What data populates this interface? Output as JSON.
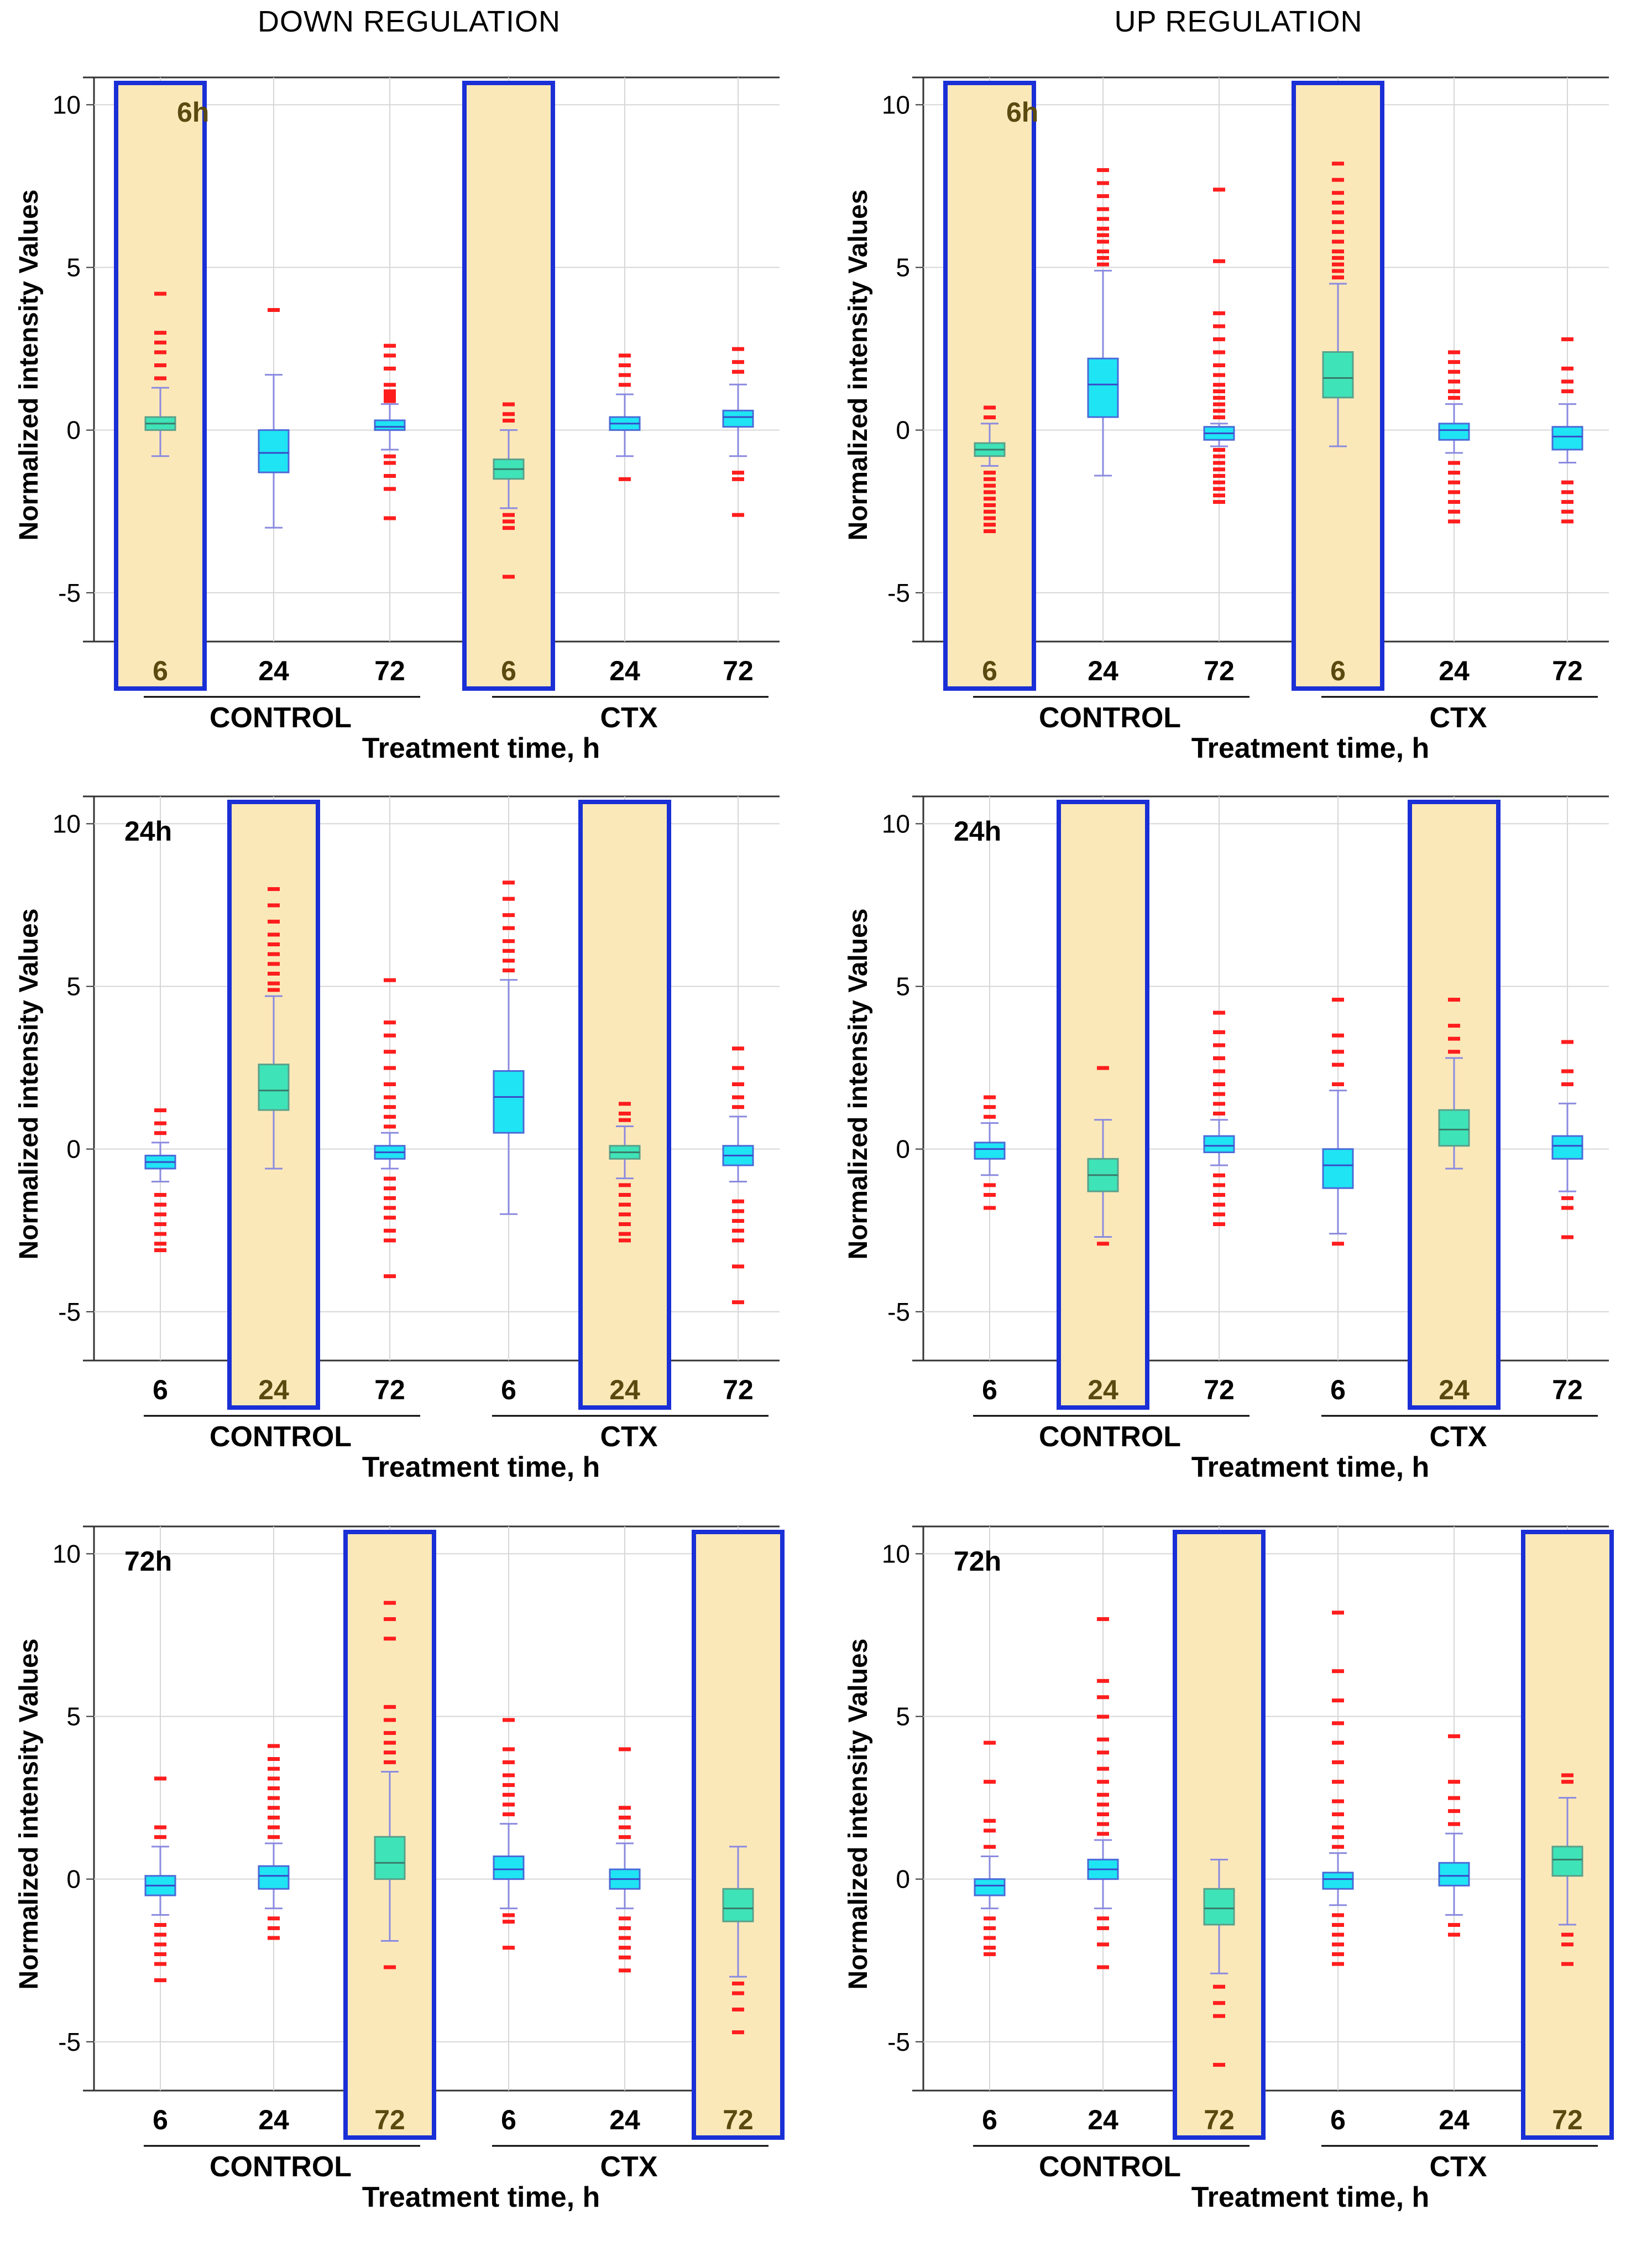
{
  "figure": {
    "column_titles": [
      "DOWN REGULATION",
      "UP REGULATION"
    ]
  },
  "chart_data": [
    {
      "type": "box",
      "column": "DOWN REGULATION",
      "panel_label": "6h",
      "ylabel": "Normalized intensity Values",
      "xlabel": "Treatment time, h",
      "ylim": [
        -6.5,
        10.5
      ],
      "yticks": [
        -5,
        0,
        5,
        10
      ],
      "groups": [
        "CONTROL",
        "CTX"
      ],
      "categories": [
        "6",
        "24",
        "72",
        "6",
        "24",
        "72"
      ],
      "highlighted": [
        0,
        3
      ],
      "boxes": [
        {
          "q1": 0.0,
          "median": 0.2,
          "q3": 0.4,
          "whisker_low": -0.8,
          "whisker_high": 1.3,
          "outliers_low": [],
          "outliers_high": [
            1.6,
            2.0,
            2.4,
            2.7,
            3.0,
            4.2
          ]
        },
        {
          "q1": -1.3,
          "median": -0.7,
          "q3": 0.0,
          "whisker_low": -3.0,
          "whisker_high": 1.7,
          "outliers_low": [],
          "outliers_high": [
            3.7
          ]
        },
        {
          "q1": 0.0,
          "median": 0.1,
          "q3": 0.3,
          "whisker_low": -0.6,
          "whisker_high": 0.8,
          "outliers_low": [
            -0.8,
            -1.0,
            -1.4,
            -1.8,
            -2.7
          ],
          "outliers_high": [
            0.9,
            1.0,
            1.1,
            1.2,
            1.4,
            1.9,
            2.3,
            2.6
          ]
        },
        {
          "q1": -1.5,
          "median": -1.2,
          "q3": -0.9,
          "whisker_low": -2.4,
          "whisker_high": 0.0,
          "outliers_low": [
            -2.6,
            -2.8,
            -3.0,
            -4.5
          ],
          "outliers_high": [
            0.3,
            0.5,
            0.8
          ]
        },
        {
          "q1": 0.0,
          "median": 0.2,
          "q3": 0.4,
          "whisker_low": -0.8,
          "whisker_high": 1.1,
          "outliers_low": [
            -1.5
          ],
          "outliers_high": [
            1.4,
            1.7,
            2.0,
            2.3
          ]
        },
        {
          "q1": 0.1,
          "median": 0.4,
          "q3": 0.6,
          "whisker_low": -0.8,
          "whisker_high": 1.4,
          "outliers_low": [
            -1.3,
            -1.5,
            -2.6
          ],
          "outliers_high": [
            1.8,
            2.1,
            2.5
          ]
        }
      ]
    },
    {
      "type": "box",
      "column": "UP REGULATION",
      "panel_label": "6h",
      "ylabel": "Normalized intensity Values",
      "xlabel": "Treatment time, h",
      "ylim": [
        -6.5,
        10.5
      ],
      "yticks": [
        -5,
        0,
        5,
        10
      ],
      "groups": [
        "CONTROL",
        "CTX"
      ],
      "categories": [
        "6",
        "24",
        "72",
        "6",
        "24",
        "72"
      ],
      "highlighted": [
        0,
        3
      ],
      "boxes": [
        {
          "q1": -0.8,
          "median": -0.6,
          "q3": -0.4,
          "whisker_low": -1.1,
          "whisker_high": 0.2,
          "outliers_low": [
            -1.3,
            -1.5,
            -1.7,
            -1.9,
            -2.1,
            -2.3,
            -2.5,
            -2.7,
            -2.9,
            -3.1
          ],
          "outliers_high": [
            0.4,
            0.7
          ]
        },
        {
          "q1": 0.4,
          "median": 1.4,
          "q3": 2.2,
          "whisker_low": -1.4,
          "whisker_high": 4.9,
          "outliers_low": [],
          "outliers_high": [
            5.1,
            5.3,
            5.5,
            5.8,
            6.0,
            6.2,
            6.5,
            6.8,
            7.2,
            7.6,
            8.0
          ]
        },
        {
          "q1": -0.3,
          "median": -0.1,
          "q3": 0.1,
          "whisker_low": -0.5,
          "whisker_high": 0.2,
          "outliers_low": [
            -0.6,
            -0.8,
            -1.0,
            -1.2,
            -1.4,
            -1.6,
            -1.8,
            -2.0,
            -2.2
          ],
          "outliers_high": [
            0.4,
            0.6,
            0.8,
            1.0,
            1.2,
            1.4,
            1.7,
            2.0,
            2.4,
            2.8,
            3.2,
            3.6,
            5.2,
            7.4
          ]
        },
        {
          "q1": 1.0,
          "median": 1.6,
          "q3": 2.4,
          "whisker_low": -0.5,
          "whisker_high": 4.5,
          "outliers_low": [],
          "outliers_high": [
            4.7,
            4.9,
            5.1,
            5.3,
            5.5,
            5.8,
            6.1,
            6.4,
            6.7,
            7.0,
            7.3,
            7.7,
            8.2
          ]
        },
        {
          "q1": -0.3,
          "median": 0.0,
          "q3": 0.2,
          "whisker_low": -0.7,
          "whisker_high": 0.8,
          "outliers_low": [
            -1.0,
            -1.3,
            -1.6,
            -1.9,
            -2.2,
            -2.5,
            -2.8
          ],
          "outliers_high": [
            1.0,
            1.2,
            1.5,
            1.8,
            2.1,
            2.4
          ]
        },
        {
          "q1": -0.6,
          "median": -0.2,
          "q3": 0.1,
          "whisker_low": -1.0,
          "whisker_high": 0.8,
          "outliers_low": [
            -1.6,
            -1.9,
            -2.2,
            -2.5,
            -2.8
          ],
          "outliers_high": [
            1.2,
            1.5,
            1.9,
            2.8
          ]
        }
      ]
    },
    {
      "type": "box",
      "column": "DOWN REGULATION",
      "panel_label": "24h",
      "ylabel": "Normalized intensity Values",
      "xlabel": "Treatment time, h",
      "ylim": [
        -6.5,
        10.5
      ],
      "yticks": [
        -5,
        0,
        5,
        10
      ],
      "groups": [
        "CONTROL",
        "CTX"
      ],
      "categories": [
        "6",
        "24",
        "72",
        "6",
        "24",
        "72"
      ],
      "highlighted": [
        1,
        4
      ],
      "boxes": [
        {
          "q1": -0.6,
          "median": -0.4,
          "q3": -0.2,
          "whisker_low": -1.0,
          "whisker_high": 0.2,
          "outliers_low": [
            -1.4,
            -1.7,
            -2.0,
            -2.3,
            -2.6,
            -2.9,
            -3.1
          ],
          "outliers_high": [
            0.5,
            0.8,
            1.2
          ]
        },
        {
          "q1": 1.2,
          "median": 1.8,
          "q3": 2.6,
          "whisker_low": -0.6,
          "whisker_high": 4.7,
          "outliers_low": [],
          "outliers_high": [
            4.9,
            5.1,
            5.4,
            5.7,
            6.0,
            6.3,
            6.6,
            7.0,
            7.5,
            8.0
          ]
        },
        {
          "q1": -0.3,
          "median": -0.1,
          "q3": 0.1,
          "whisker_low": -0.6,
          "whisker_high": 0.5,
          "outliers_low": [
            -0.9,
            -1.2,
            -1.5,
            -1.8,
            -2.1,
            -2.5,
            -2.8,
            -3.9
          ],
          "outliers_high": [
            0.7,
            1.0,
            1.3,
            1.6,
            2.0,
            2.5,
            3.0,
            3.5,
            3.9,
            5.2
          ]
        },
        {
          "q1": 0.5,
          "median": 1.6,
          "q3": 2.4,
          "whisker_low": -2.0,
          "whisker_high": 5.2,
          "outliers_low": [],
          "outliers_high": [
            5.5,
            5.8,
            6.1,
            6.4,
            6.8,
            7.2,
            7.7,
            8.2
          ]
        },
        {
          "q1": -0.3,
          "median": -0.1,
          "q3": 0.1,
          "whisker_low": -0.9,
          "whisker_high": 0.7,
          "outliers_low": [
            -1.1,
            -1.4,
            -1.7,
            -2.0,
            -2.3,
            -2.6,
            -2.8
          ],
          "outliers_high": [
            0.9,
            1.1,
            1.4
          ]
        },
        {
          "q1": -0.5,
          "median": -0.2,
          "q3": 0.1,
          "whisker_low": -1.0,
          "whisker_high": 1.0,
          "outliers_low": [
            -1.6,
            -1.9,
            -2.2,
            -2.5,
            -2.8,
            -3.6,
            -4.7
          ],
          "outliers_high": [
            1.3,
            1.6,
            2.0,
            2.5,
            3.1
          ]
        }
      ]
    },
    {
      "type": "box",
      "column": "UP REGULATION",
      "panel_label": "24h",
      "ylabel": "Normalized intensity Values",
      "xlabel": "Treatment time, h",
      "ylim": [
        -6.5,
        10.5
      ],
      "yticks": [
        -5,
        0,
        5,
        10
      ],
      "groups": [
        "CONTROL",
        "CTX"
      ],
      "categories": [
        "6",
        "24",
        "72",
        "6",
        "24",
        "72"
      ],
      "highlighted": [
        1,
        4
      ],
      "boxes": [
        {
          "q1": -0.3,
          "median": 0.0,
          "q3": 0.2,
          "whisker_low": -0.8,
          "whisker_high": 0.8,
          "outliers_low": [
            -1.1,
            -1.4,
            -1.8
          ],
          "outliers_high": [
            1.0,
            1.3,
            1.6
          ]
        },
        {
          "q1": -1.3,
          "median": -0.8,
          "q3": -0.3,
          "whisker_low": -2.7,
          "whisker_high": 0.9,
          "outliers_low": [
            -2.9
          ],
          "outliers_high": [
            2.5
          ]
        },
        {
          "q1": -0.1,
          "median": 0.1,
          "q3": 0.4,
          "whisker_low": -0.5,
          "whisker_high": 0.9,
          "outliers_low": [
            -0.8,
            -1.1,
            -1.4,
            -1.7,
            -2.0,
            -2.3
          ],
          "outliers_high": [
            1.1,
            1.4,
            1.7,
            2.0,
            2.4,
            2.8,
            3.2,
            3.6,
            4.2
          ]
        },
        {
          "q1": -1.2,
          "median": -0.5,
          "q3": 0.0,
          "whisker_low": -2.6,
          "whisker_high": 1.8,
          "outliers_low": [
            -2.9
          ],
          "outliers_high": [
            2.0,
            2.6,
            3.0,
            3.5,
            4.6
          ]
        },
        {
          "q1": 0.1,
          "median": 0.6,
          "q3": 1.2,
          "whisker_low": -0.6,
          "whisker_high": 2.8,
          "outliers_low": [],
          "outliers_high": [
            3.0,
            3.4,
            3.8,
            4.6
          ]
        },
        {
          "q1": -0.3,
          "median": 0.1,
          "q3": 0.4,
          "whisker_low": -1.3,
          "whisker_high": 1.4,
          "outliers_low": [
            -1.5,
            -1.8,
            -2.7
          ],
          "outliers_high": [
            2.0,
            2.4,
            3.3
          ]
        }
      ]
    },
    {
      "type": "box",
      "column": "DOWN REGULATION",
      "panel_label": "72h",
      "ylabel": "Normalized intensity Values",
      "xlabel": "Treatment time, h",
      "ylim": [
        -6.5,
        10.5
      ],
      "yticks": [
        -5,
        0,
        5,
        10
      ],
      "groups": [
        "CONTROL",
        "CTX"
      ],
      "categories": [
        "6",
        "24",
        "72",
        "6",
        "24",
        "72"
      ],
      "highlighted": [
        2,
        5
      ],
      "boxes": [
        {
          "q1": -0.5,
          "median": -0.2,
          "q3": 0.1,
          "whisker_low": -1.1,
          "whisker_high": 1.0,
          "outliers_low": [
            -1.4,
            -1.7,
            -2.0,
            -2.3,
            -2.6,
            -3.1
          ],
          "outliers_high": [
            1.3,
            1.6,
            3.1
          ]
        },
        {
          "q1": -0.3,
          "median": 0.1,
          "q3": 0.4,
          "whisker_low": -0.9,
          "whisker_high": 1.1,
          "outliers_low": [
            -1.2,
            -1.5,
            -1.8
          ],
          "outliers_high": [
            1.3,
            1.6,
            1.9,
            2.2,
            2.5,
            2.8,
            3.1,
            3.4,
            3.7,
            4.1
          ]
        },
        {
          "q1": 0.0,
          "median": 0.5,
          "q3": 1.3,
          "whisker_low": -1.9,
          "whisker_high": 3.3,
          "outliers_low": [
            -2.7
          ],
          "outliers_high": [
            3.6,
            3.9,
            4.2,
            4.5,
            4.9,
            5.3,
            7.4,
            8.0,
            8.5
          ]
        },
        {
          "q1": 0.0,
          "median": 0.3,
          "q3": 0.7,
          "whisker_low": -0.9,
          "whisker_high": 1.7,
          "outliers_low": [
            -1.1,
            -1.3,
            -2.1
          ],
          "outliers_high": [
            2.0,
            2.3,
            2.6,
            2.9,
            3.2,
            3.6,
            4.0,
            4.9
          ]
        },
        {
          "q1": -0.3,
          "median": 0.0,
          "q3": 0.3,
          "whisker_low": -0.9,
          "whisker_high": 1.1,
          "outliers_low": [
            -1.2,
            -1.5,
            -1.8,
            -2.1,
            -2.4,
            -2.8
          ],
          "outliers_high": [
            1.3,
            1.6,
            1.9,
            2.2,
            4.0
          ]
        },
        {
          "q1": -1.3,
          "median": -0.9,
          "q3": -0.3,
          "whisker_low": -3.0,
          "whisker_high": 1.0,
          "outliers_low": [
            -3.2,
            -3.5,
            -4.0,
            -4.7
          ],
          "outliers_high": []
        }
      ]
    },
    {
      "type": "box",
      "column": "UP REGULATION",
      "panel_label": "72h",
      "ylabel": "Normalized intensity Values",
      "xlabel": "Treatment time, h",
      "ylim": [
        -6.5,
        10.5
      ],
      "yticks": [
        -5,
        0,
        5,
        10
      ],
      "groups": [
        "CONTROL",
        "CTX"
      ],
      "categories": [
        "6",
        "24",
        "72",
        "6",
        "24",
        "72"
      ],
      "highlighted": [
        2,
        5
      ],
      "boxes": [
        {
          "q1": -0.5,
          "median": -0.2,
          "q3": 0.0,
          "whisker_low": -0.9,
          "whisker_high": 0.7,
          "outliers_low": [
            -1.2,
            -1.5,
            -1.8,
            -2.1,
            -2.3
          ],
          "outliers_high": [
            1.0,
            1.5,
            1.8,
            3.0,
            4.2
          ]
        },
        {
          "q1": 0.0,
          "median": 0.3,
          "q3": 0.6,
          "whisker_low": -0.9,
          "whisker_high": 1.2,
          "outliers_low": [
            -1.2,
            -1.5,
            -2.0,
            -2.7
          ],
          "outliers_high": [
            1.4,
            1.7,
            2.0,
            2.3,
            2.6,
            3.0,
            3.4,
            3.9,
            4.3,
            5.0,
            5.6,
            6.1,
            8.0
          ]
        },
        {
          "q1": -1.4,
          "median": -0.9,
          "q3": -0.3,
          "whisker_low": -2.9,
          "whisker_high": 0.6,
          "outliers_low": [
            -3.3,
            -3.8,
            -4.2,
            -5.7
          ],
          "outliers_high": []
        },
        {
          "q1": -0.3,
          "median": 0.0,
          "q3": 0.2,
          "whisker_low": -0.8,
          "whisker_high": 0.8,
          "outliers_low": [
            -1.1,
            -1.4,
            -1.7,
            -2.0,
            -2.3,
            -2.6
          ],
          "outliers_high": [
            1.0,
            1.3,
            1.6,
            2.0,
            2.4,
            3.0,
            3.6,
            4.2,
            4.8,
            5.5,
            6.4,
            8.2
          ]
        },
        {
          "q1": -0.2,
          "median": 0.1,
          "q3": 0.5,
          "whisker_low": -1.1,
          "whisker_high": 1.4,
          "outliers_low": [
            -1.4,
            -1.7
          ],
          "outliers_high": [
            1.7,
            2.1,
            2.5,
            3.0,
            4.4
          ]
        },
        {
          "q1": 0.1,
          "median": 0.6,
          "q3": 1.0,
          "whisker_low": -1.4,
          "whisker_high": 2.5,
          "outliers_low": [
            -1.7,
            -2.0,
            -2.6
          ],
          "outliers_high": [
            3.0,
            3.2
          ]
        }
      ]
    }
  ]
}
